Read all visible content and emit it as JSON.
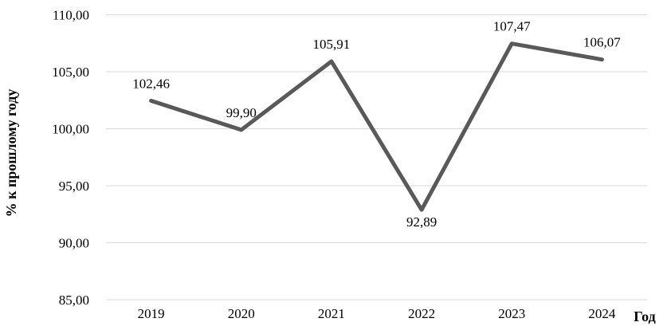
{
  "chart_data": {
    "type": "line",
    "title": "",
    "xlabel": "Год",
    "ylabel": "% к прошлому году",
    "categories": [
      "2019",
      "2020",
      "2021",
      "2022",
      "2023",
      "2024"
    ],
    "series": [
      {
        "name": "",
        "values": [
          102.46,
          99.9,
          105.91,
          92.89,
          107.47,
          106.07
        ]
      }
    ],
    "data_labels": [
      "102,46",
      "99,90",
      "105,91",
      "92,89",
      "107,47",
      "106,07"
    ],
    "label_positions": [
      "above",
      "above",
      "above",
      "below",
      "above",
      "above"
    ],
    "ytick_labels": [
      "85,00",
      "90,00",
      "95,00",
      "100,00",
      "105,00",
      "110,00"
    ],
    "ylim": [
      85,
      110
    ],
    "ytick_step": 5,
    "decimal_separator": ",",
    "grid": "horizontal",
    "legend": "none",
    "line_color": "#595959",
    "gridline_color": "#d9d9d9",
    "text_color": "#000000"
  }
}
